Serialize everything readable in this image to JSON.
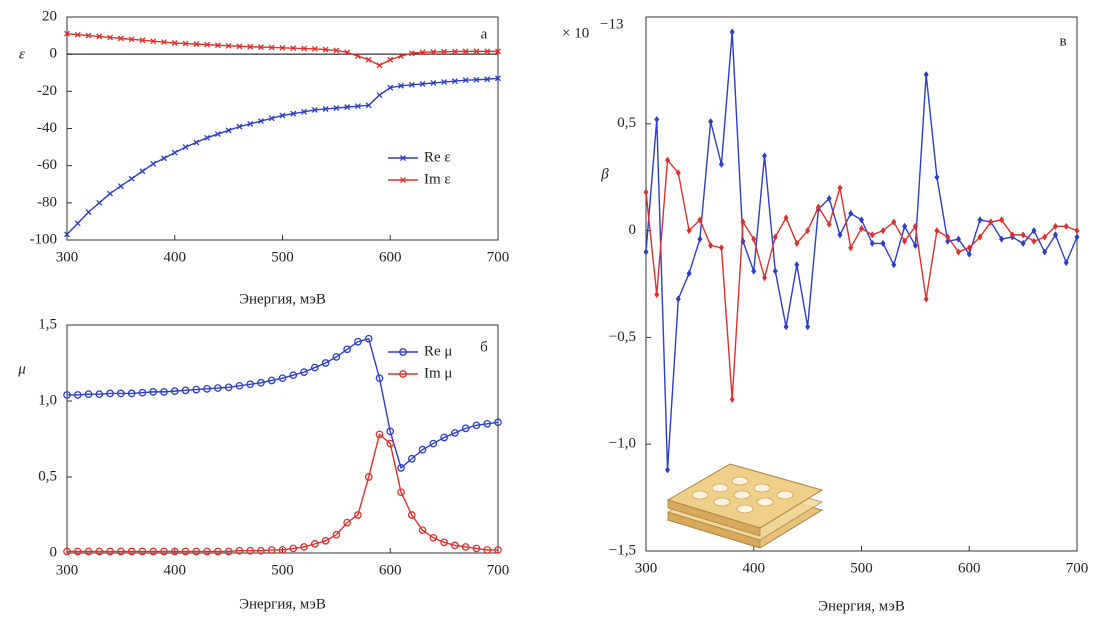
{
  "chart_data": [
    {
      "type": "line",
      "label": "а",
      "xlabel": "Энергия, мэВ",
      "ylabel": "ε",
      "marker": "x",
      "zero_line": true,
      "legend": "lower right",
      "x": [
        300,
        310,
        320,
        330,
        340,
        350,
        360,
        370,
        380,
        390,
        400,
        410,
        420,
        430,
        440,
        450,
        460,
        470,
        480,
        490,
        500,
        510,
        520,
        530,
        540,
        550,
        560,
        570,
        580,
        590,
        600,
        610,
        620,
        630,
        640,
        650,
        660,
        670,
        680,
        690,
        700
      ],
      "xlim": [
        300,
        700
      ],
      "xticks": [
        300,
        400,
        500,
        600,
        700
      ],
      "ylim": [
        -100,
        20
      ],
      "yticks": [
        -100,
        -80,
        -60,
        -40,
        -20,
        0,
        20
      ],
      "series": [
        {
          "name": "Re ε",
          "color": "#2b3fc8",
          "values": [
            -97,
            -91,
            -85,
            -80,
            -75,
            -71,
            -67,
            -63,
            -59,
            -56,
            -53,
            -50,
            -47.5,
            -45,
            -43,
            -41,
            -39,
            -37.5,
            -36,
            -34.5,
            -33,
            -32,
            -31,
            -30,
            -29.5,
            -29,
            -28.5,
            -28,
            -27.5,
            -22,
            -18,
            -17,
            -16.5,
            -16,
            -15.5,
            -15,
            -14.5,
            -14,
            -13.8,
            -13.5,
            -13
          ]
        },
        {
          "name": "Im ε",
          "color": "#e0302a",
          "values": [
            11,
            10.5,
            10,
            9.5,
            9,
            8.5,
            8,
            7.5,
            7,
            6.5,
            6,
            5.7,
            5.4,
            5.1,
            4.8,
            4.5,
            4.2,
            4,
            3.8,
            3.6,
            3.4,
            3.2,
            3,
            2.8,
            2.5,
            2,
            1,
            -1,
            -3,
            -6,
            -3,
            -1,
            0.5,
            1,
            1.2,
            1.3,
            1.4,
            1.5,
            1.5,
            1.5,
            1.5
          ]
        }
      ]
    },
    {
      "type": "line",
      "label": "б",
      "xlabel": "Энергия, мэВ",
      "ylabel": "μ",
      "marker": "circle",
      "legend": "upper right",
      "x": [
        300,
        310,
        320,
        330,
        340,
        350,
        360,
        370,
        380,
        390,
        400,
        410,
        420,
        430,
        440,
        450,
        460,
        470,
        480,
        490,
        500,
        510,
        520,
        530,
        540,
        550,
        560,
        570,
        580,
        590,
        600,
        610,
        620,
        630,
        640,
        650,
        660,
        670,
        680,
        690,
        700
      ],
      "xlim": [
        300,
        700
      ],
      "xticks": [
        300,
        400,
        500,
        600,
        700
      ],
      "ylim": [
        0,
        1.5
      ],
      "yticks": [
        0,
        {
          "value": 0.5,
          "label": "0,5"
        },
        {
          "value": 1,
          "label": "1,0"
        },
        {
          "value": 1.5,
          "label": "1,5"
        }
      ],
      "series": [
        {
          "name": "Re μ",
          "color": "#2b3fc8",
          "values": [
            1.04,
            1.04,
            1.045,
            1.045,
            1.05,
            1.05,
            1.05,
            1.055,
            1.06,
            1.06,
            1.065,
            1.07,
            1.075,
            1.08,
            1.085,
            1.09,
            1.1,
            1.11,
            1.12,
            1.135,
            1.15,
            1.17,
            1.19,
            1.22,
            1.25,
            1.29,
            1.34,
            1.39,
            1.41,
            1.15,
            0.8,
            0.56,
            0.62,
            0.68,
            0.72,
            0.76,
            0.79,
            0.82,
            0.84,
            0.85,
            0.86
          ]
        },
        {
          "name": "Im μ",
          "color": "#e0302a",
          "values": [
            0.01,
            0.01,
            0.01,
            0.01,
            0.01,
            0.01,
            0.01,
            0.01,
            0.01,
            0.01,
            0.01,
            0.01,
            0.01,
            0.01,
            0.01,
            0.01,
            0.015,
            0.015,
            0.015,
            0.02,
            0.02,
            0.03,
            0.04,
            0.06,
            0.08,
            0.12,
            0.2,
            0.25,
            0.5,
            0.78,
            0.72,
            0.4,
            0.25,
            0.15,
            0.1,
            0.07,
            0.05,
            0.04,
            0.03,
            0.02,
            0.02
          ]
        }
      ]
    },
    {
      "type": "line",
      "label": "в",
      "xlabel": "Энергия, мэВ",
      "ylabel": "β",
      "marker": "diamond",
      "y_scale": {
        "base": "× 10",
        "exponent": "−13"
      },
      "x": [
        300,
        310,
        320,
        330,
        340,
        350,
        360,
        370,
        380,
        390,
        400,
        410,
        420,
        430,
        440,
        450,
        460,
        470,
        480,
        490,
        500,
        510,
        520,
        530,
        540,
        550,
        560,
        570,
        580,
        590,
        600,
        610,
        620,
        630,
        640,
        650,
        660,
        670,
        680,
        690,
        700
      ],
      "xlim": [
        300,
        700
      ],
      "xticks": [
        300,
        400,
        500,
        600,
        700
      ],
      "ylim": [
        -1.5,
        1.0
      ],
      "yticks": [
        {
          "value": -1.5,
          "label": "−1,5"
        },
        {
          "value": -1,
          "label": "−1,0"
        },
        {
          "value": -0.5,
          "label": "−0,5"
        },
        0,
        {
          "value": 0.5,
          "label": "0,5"
        }
      ],
      "series": [
        {
          "color": "#2b3fc8",
          "values": [
            -0.1,
            0.52,
            -1.12,
            -0.32,
            -0.2,
            -0.04,
            0.51,
            0.31,
            0.93,
            -0.05,
            -0.19,
            0.35,
            -0.19,
            -0.45,
            -0.16,
            -0.45,
            0.1,
            0.15,
            -0.02,
            0.08,
            0.05,
            -0.06,
            -0.06,
            -0.16,
            0.02,
            -0.07,
            0.73,
            0.25,
            -0.05,
            -0.04,
            -0.11,
            0.05,
            0.04,
            -0.04,
            -0.03,
            -0.06,
            0,
            -0.1,
            -0.02,
            -0.15,
            -0.03
          ]
        },
        {
          "color": "#e0302a",
          "values": [
            0.18,
            -0.3,
            0.33,
            0.27,
            0,
            0.05,
            -0.07,
            -0.08,
            -0.79,
            0.04,
            -0.04,
            -0.22,
            -0.03,
            0.06,
            -0.06,
            0,
            0.11,
            0.03,
            0.2,
            -0.08,
            0.01,
            -0.02,
            0,
            0.04,
            -0.05,
            0.02,
            -0.32,
            0,
            -0.03,
            -0.1,
            -0.08,
            -0.03,
            0.04,
            0.05,
            -0.02,
            -0.02,
            -0.05,
            -0.03,
            0.02,
            0.02,
            0
          ]
        }
      ]
    }
  ]
}
